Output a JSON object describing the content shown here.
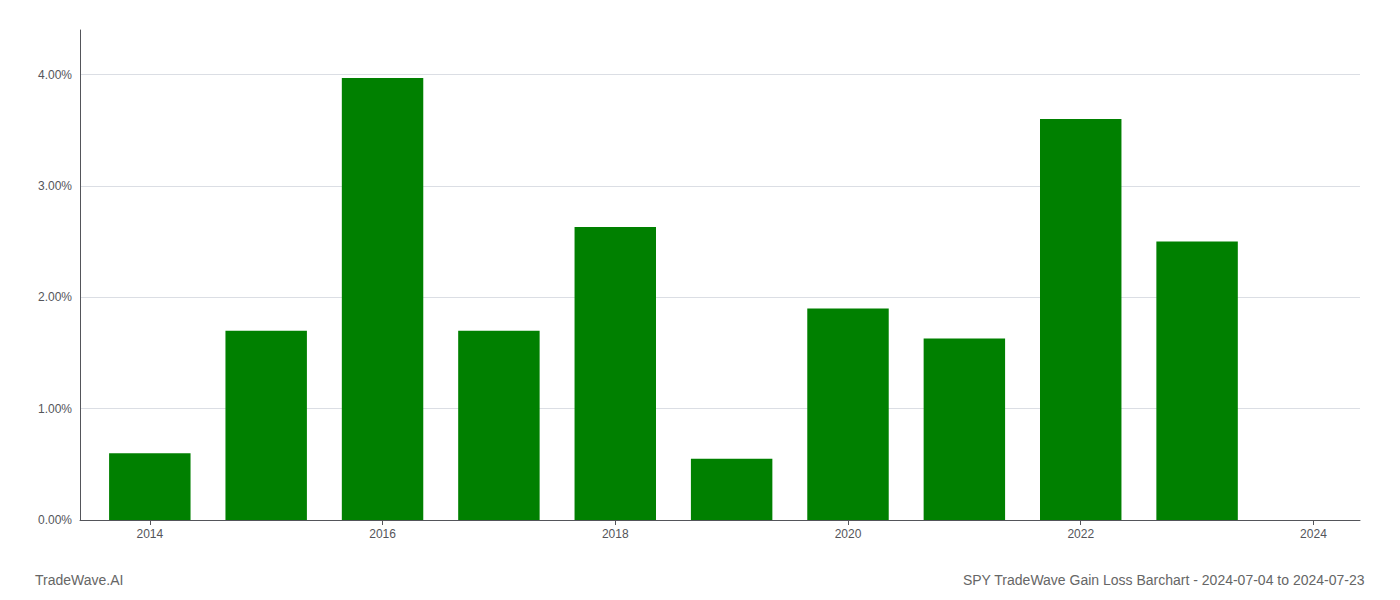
{
  "chart_data": {
    "type": "bar",
    "title": "SPY TradeWave Gain Loss Barchart - 2024-07-04 to 2024-07-23",
    "annotations": [
      "TradeWave.AI"
    ],
    "x": [
      2014,
      2015,
      2016,
      2017,
      2018,
      2019,
      2020,
      2021,
      2022,
      2023
    ],
    "values": [
      0.006,
      0.017,
      0.0397,
      0.017,
      0.0263,
      0.0055,
      0.019,
      0.0163,
      0.036,
      0.025
    ],
    "color": "#008000",
    "xlim": [
      2013.4,
      2024.4
    ],
    "xticks": [
      2014,
      2016,
      2018,
      2020,
      2022,
      2024
    ],
    "ylim": [
      0,
      0.044
    ],
    "yticks": [
      {
        "value": 0,
        "label": "0.00%"
      },
      {
        "value": 0.01,
        "label": "1.00%"
      },
      {
        "value": 0.02,
        "label": "2.00%"
      },
      {
        "value": 0.03,
        "label": "3.00%"
      },
      {
        "value": 0.04,
        "label": "4.00%"
      }
    ],
    "grid": true
  }
}
